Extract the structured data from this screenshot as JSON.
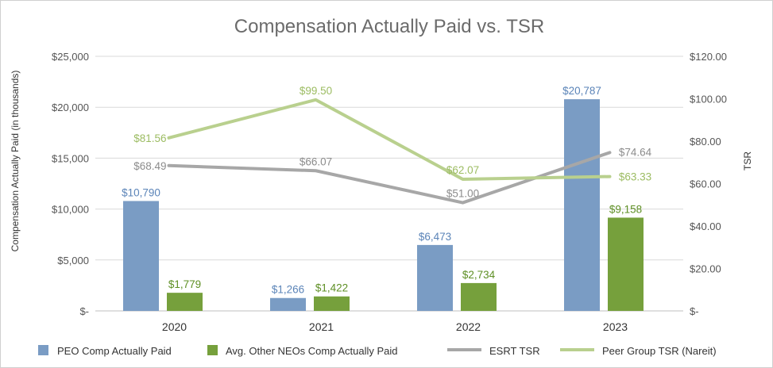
{
  "chart_data": {
    "type": "bar-line-combo",
    "title": "Compensation Actually Paid vs. TSR",
    "ylabel": "Compensation Actually Paid (in thousands)",
    "y2label": "TSR",
    "ylim": [
      0,
      25000
    ],
    "y2lim": [
      0,
      120
    ],
    "yticks": [
      "$-",
      "$5,000",
      "$10,000",
      "$15,000",
      "$20,000",
      "$25,000"
    ],
    "y2ticks": [
      "$-",
      "$20.00",
      "$40.00",
      "$60.00",
      "$80.00",
      "$100.00",
      "$120.00"
    ],
    "categories": [
      "2020",
      "2021",
      "2022",
      "2023"
    ],
    "bar_series": [
      {
        "name": "PEO Comp Actually Paid",
        "color": "#7a9cc4",
        "label_color": "#5b84b8",
        "values": [
          10790,
          1266,
          6473,
          20787
        ],
        "labels": [
          "$10,790",
          "$1,266",
          "$6,473",
          "$20,787"
        ]
      },
      {
        "name": "Avg. Other NEOs Comp Actually Paid",
        "color": "#76a03c",
        "label_color": "#5e8f24",
        "values": [
          1779,
          1422,
          2734,
          9158
        ],
        "labels": [
          "$1,779",
          "$1,422",
          "$2,734",
          "$9,158"
        ]
      }
    ],
    "line_series": [
      {
        "name": "ESRT TSR",
        "color": "#a7a7a7",
        "label_color": "#8c8c8c",
        "values": [
          68.49,
          66.07,
          51.0,
          74.64
        ],
        "labels": [
          "$68.49",
          "$66.07",
          "$51.00",
          "$74.64"
        ]
      },
      {
        "name": "Peer Group TSR (Nareit)",
        "color": "#b9d08e",
        "label_color": "#9cbc62",
        "values": [
          81.56,
          99.5,
          62.07,
          63.33
        ],
        "labels": [
          "$81.56",
          "$99.50",
          "$62.07",
          "$63.33"
        ]
      }
    ],
    "legend_position": "bottom",
    "grid": true
  }
}
